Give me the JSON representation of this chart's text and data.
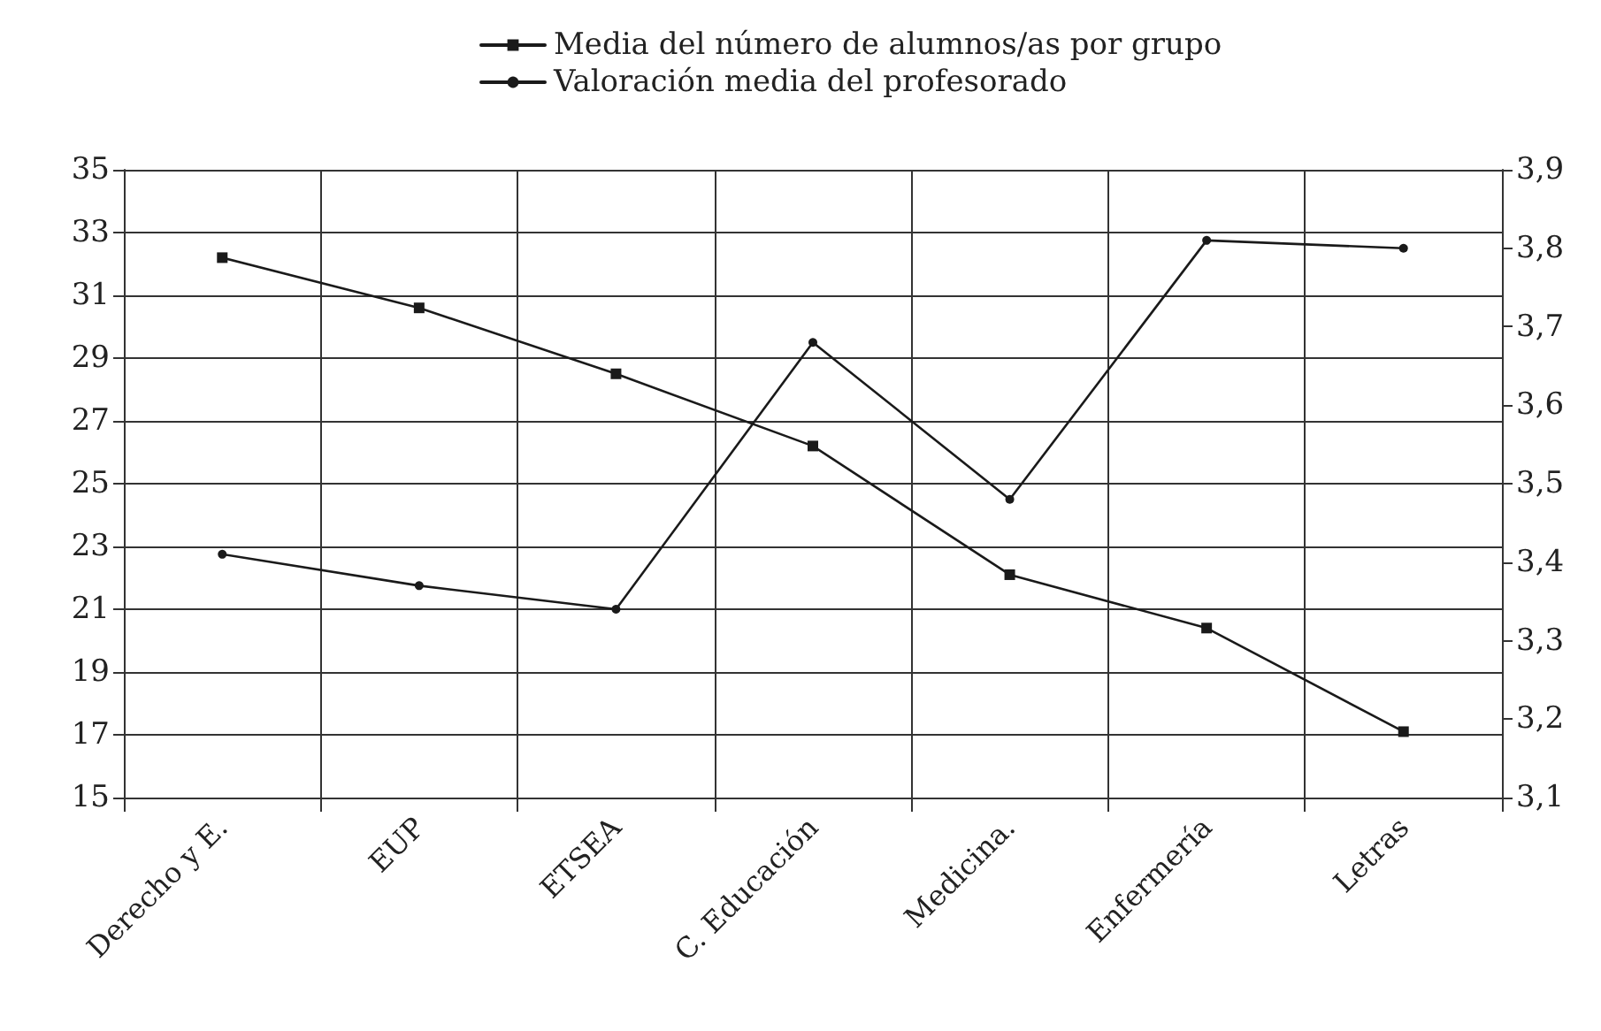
{
  "chart_data": {
    "type": "line",
    "categories": [
      "Derecho y E.",
      "EUP",
      "ETSEA",
      "C. Educación",
      "Medicina.",
      "Enfermería",
      "Letras"
    ],
    "series": [
      {
        "name": "Media del número de alumnos/as por grupo",
        "color": "#1a1a1a",
        "marker": "square",
        "values": [
          32.2,
          30.6,
          28.5,
          26.2,
          22.1,
          20.4,
          17.1
        ]
      },
      {
        "name": "Valoración media del profesorado",
        "color": "#1a1a1a",
        "marker": "circle",
        "axis": "y2",
        "values": [
          3.41,
          3.37,
          3.34,
          3.68,
          3.48,
          3.81,
          3.8
        ]
      }
    ],
    "ylim": [
      15,
      35
    ],
    "yticks": [
      15,
      17,
      19,
      21,
      23,
      25,
      27,
      29,
      31,
      33,
      35
    ],
    "y2lim": [
      3.1,
      3.9
    ],
    "y2ticks": [
      {
        "value": 3.1,
        "label": "3,1"
      },
      {
        "value": 3.2,
        "label": "3,2"
      },
      {
        "value": 3.3,
        "label": "3,3"
      },
      {
        "value": 3.4,
        "label": "3,4"
      },
      {
        "value": 3.5,
        "label": "3,5"
      },
      {
        "value": 3.6,
        "label": "3,6"
      },
      {
        "value": 3.7,
        "label": "3,7"
      },
      {
        "value": 3.8,
        "label": "3,8"
      },
      {
        "value": 3.9,
        "label": "3,9"
      }
    ],
    "grid": true,
    "legend": "top",
    "line_style": "solid"
  }
}
